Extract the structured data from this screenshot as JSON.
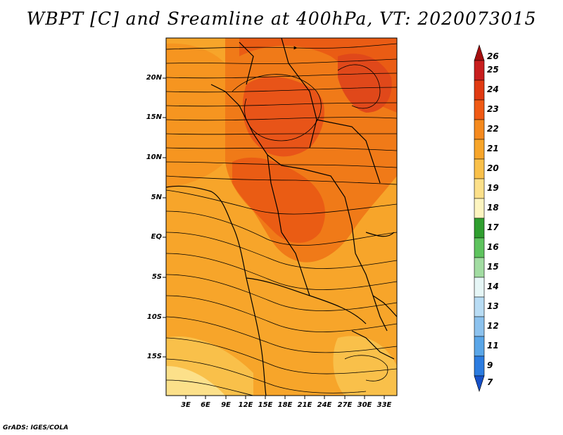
{
  "title": "WBPT [C] and Sreamline at 400hPa, VT: 2020073015",
  "credit": "GrADS: IGES/COLA",
  "map": {
    "lat_labels": [
      "20N",
      "15N",
      "10N",
      "5N",
      "EQ",
      "5S",
      "10S",
      "15S"
    ],
    "lon_labels": [
      "3E",
      "6E",
      "9E",
      "12E",
      "15E",
      "18E",
      "21E",
      "24E",
      "27E",
      "30E",
      "33E"
    ]
  },
  "colorbar": {
    "labels": [
      "26",
      "25",
      "24",
      "23",
      "22",
      "21",
      "20",
      "19",
      "18",
      "17",
      "16",
      "15",
      "14",
      "13",
      "12",
      "11",
      "9",
      "7"
    ],
    "colors": [
      "#a50f0f",
      "#c81e1e",
      "#e03a12",
      "#f05a14",
      "#f58a1e",
      "#f7a52a",
      "#f9c04a",
      "#fce08a",
      "#fdf5c0",
      "#2f9e2f",
      "#5ec35e",
      "#a2dca2",
      "#e6f6f6",
      "#b8dcf4",
      "#8cc2ee",
      "#5aa6e8",
      "#2c7ce0",
      "#1650c8"
    ]
  }
}
